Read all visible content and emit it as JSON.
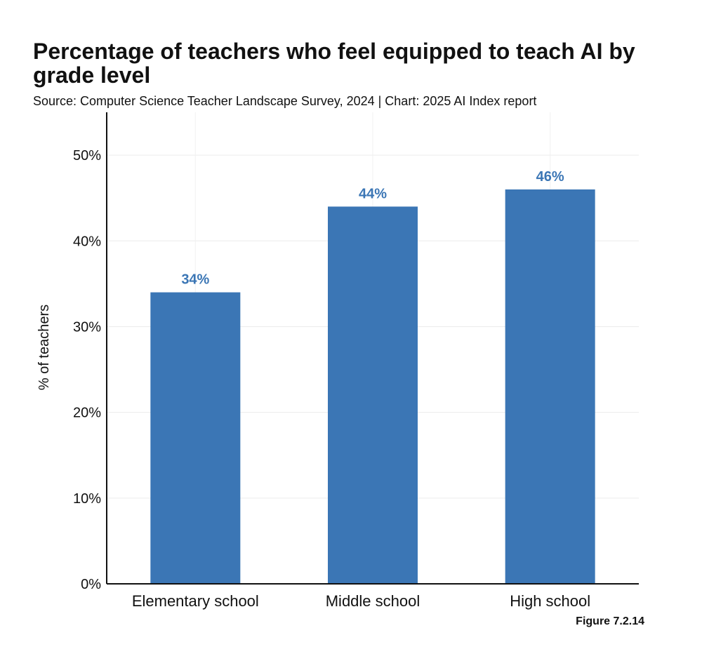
{
  "chart_data": {
    "type": "bar",
    "title": "Percentage of teachers who feel equipped to teach AI by grade level",
    "subtitle": "Source: Computer Science Teacher Landscape Survey, 2024 | Chart: 2025 AI Index report",
    "categories": [
      "Elementary school",
      "Middle school",
      "High school"
    ],
    "values": [
      34,
      44,
      46
    ],
    "data_labels": [
      "34%",
      "44%",
      "46%"
    ],
    "xlabel": "",
    "ylabel": "% of teachers",
    "ylim": [
      0,
      55
    ],
    "yticks": [
      0,
      10,
      20,
      30,
      40,
      50
    ],
    "ytick_labels": [
      "0%",
      "10%",
      "20%",
      "30%",
      "40%",
      "50%"
    ],
    "grid": true,
    "bar_color": "#3b76b5",
    "label_color": "#3b76b5"
  },
  "figure_label": "Figure 7.2.14"
}
